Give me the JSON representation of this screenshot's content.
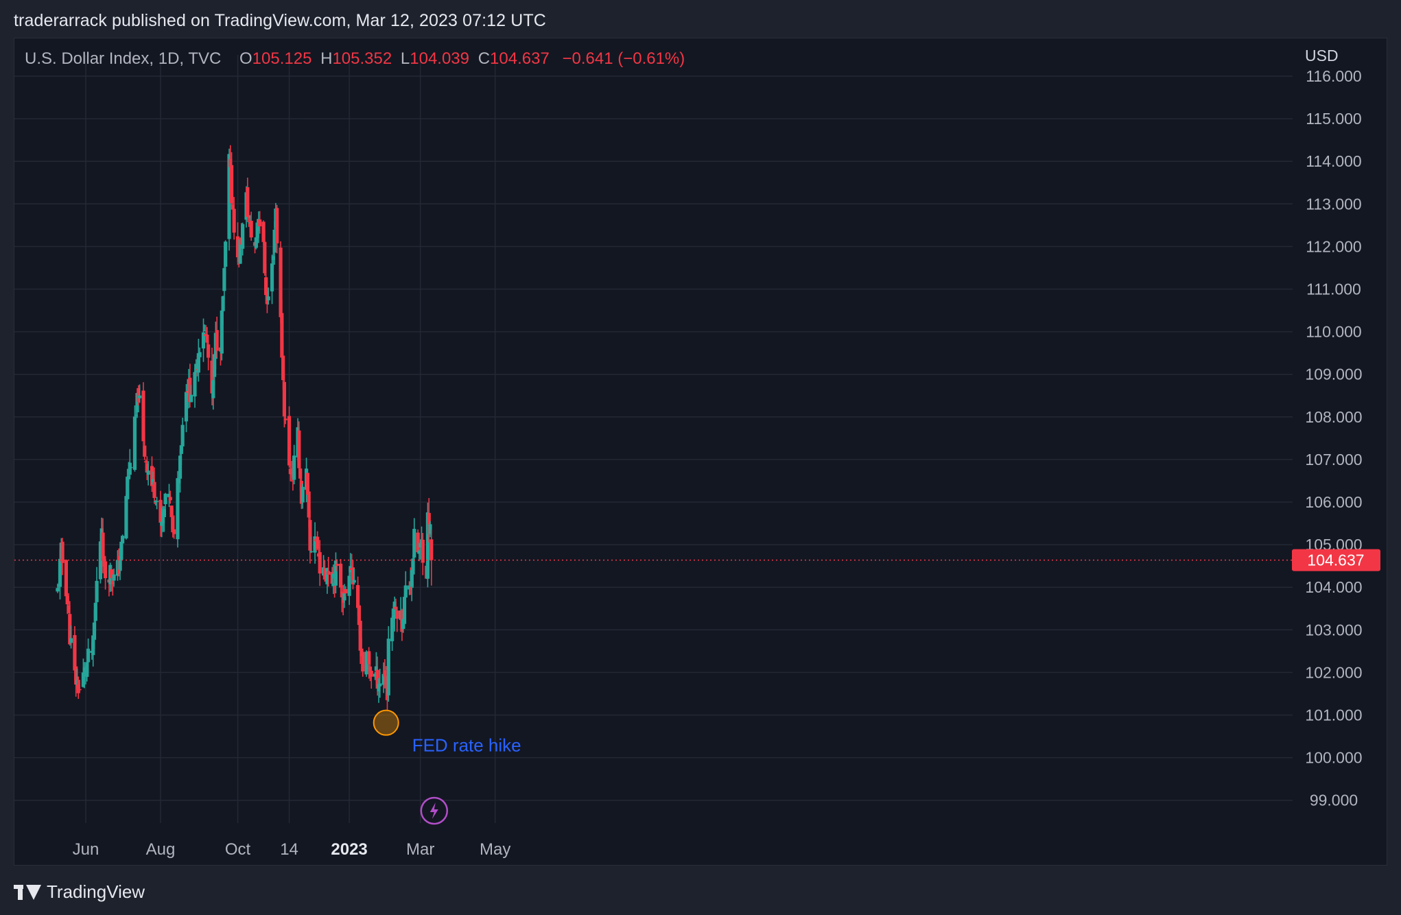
{
  "publisher_line": "traderarrack published on TradingView.com, Mar 12, 2023 07:12 UTC",
  "legend": {
    "symbol": "U.S. Dollar Index, 1D, TVC",
    "open_label": "O",
    "open": "105.125",
    "high_label": "H",
    "high": "105.352",
    "low_label": "L",
    "low": "104.039",
    "close_label": "C",
    "close": "104.637",
    "change": "−0.641 (−0.61%)"
  },
  "currency": "USD",
  "footer": {
    "brand": "TradingView"
  },
  "colors": {
    "up": "#26a69a",
    "down": "#f23645",
    "grid": "#232834",
    "annotation": "#2962ff",
    "circle": "#ff9800",
    "event_icon": "#b24ec9"
  },
  "chart_data": {
    "type": "candlestick",
    "title": "U.S. Dollar Index, 1D, TVC",
    "ylabel": "USD",
    "ylim": [
      98.4,
      116.2
    ],
    "y_ticks": [
      "116.000",
      "115.000",
      "114.000",
      "113.000",
      "112.000",
      "111.000",
      "110.000",
      "109.000",
      "108.000",
      "107.000",
      "106.000",
      "105.000",
      "104.000",
      "103.000",
      "102.000",
      "101.000",
      "100.000",
      "99.000"
    ],
    "x_ticks": [
      {
        "label": "Jun",
        "date": "2022-06-01",
        "bold": false
      },
      {
        "label": "Aug",
        "date": "2022-08-01",
        "bold": false
      },
      {
        "label": "Oct",
        "date": "2022-10-03",
        "bold": false
      },
      {
        "label": "14",
        "date": "2022-11-14",
        "bold": false
      },
      {
        "label": "2023",
        "date": "2023-01-02",
        "bold": true
      },
      {
        "label": "Mar",
        "date": "2023-03-01",
        "bold": false
      },
      {
        "label": "May",
        "date": "2023-05-01",
        "bold": false
      }
    ],
    "last_price": 104.637,
    "last_price_label": "104.637",
    "annotation": {
      "text": "FED rate hike",
      "date": "2023-02-01",
      "price": 100.82
    },
    "event_marker": {
      "date": "2023-03-10",
      "icon": "lightning-icon"
    },
    "series": [
      {
        "date": "2022-05-09",
        "close": 103.9
      },
      {
        "date": "2022-05-12",
        "close": 104.8
      },
      {
        "date": "2022-05-16",
        "close": 104.0
      },
      {
        "date": "2022-05-19",
        "close": 102.9
      },
      {
        "date": "2022-05-23",
        "close": 101.9
      },
      {
        "date": "2022-05-27",
        "close": 101.6
      },
      {
        "date": "2022-05-31",
        "close": 102.0
      },
      {
        "date": "2022-06-03",
        "close": 102.3
      },
      {
        "date": "2022-06-07",
        "close": 102.6
      },
      {
        "date": "2022-06-10",
        "close": 104.1
      },
      {
        "date": "2022-06-14",
        "close": 105.5
      },
      {
        "date": "2022-06-16",
        "close": 104.3
      },
      {
        "date": "2022-06-21",
        "close": 104.4
      },
      {
        "date": "2022-06-24",
        "close": 104.2
      },
      {
        "date": "2022-06-28",
        "close": 104.5
      },
      {
        "date": "2022-07-01",
        "close": 105.1
      },
      {
        "date": "2022-07-05",
        "close": 106.5
      },
      {
        "date": "2022-07-08",
        "close": 107.0
      },
      {
        "date": "2022-07-12",
        "close": 108.0
      },
      {
        "date": "2022-07-14",
        "close": 108.6
      },
      {
        "date": "2022-07-18",
        "close": 107.3
      },
      {
        "date": "2022-07-21",
        "close": 106.9
      },
      {
        "date": "2022-07-25",
        "close": 106.4
      },
      {
        "date": "2022-07-28",
        "close": 106.3
      },
      {
        "date": "2022-08-01",
        "close": 105.3
      },
      {
        "date": "2022-08-04",
        "close": 105.8
      },
      {
        "date": "2022-08-08",
        "close": 106.3
      },
      {
        "date": "2022-08-11",
        "close": 105.1
      },
      {
        "date": "2022-08-15",
        "close": 106.5
      },
      {
        "date": "2022-08-18",
        "close": 107.5
      },
      {
        "date": "2022-08-22",
        "close": 108.8
      },
      {
        "date": "2022-08-25",
        "close": 108.6
      },
      {
        "date": "2022-08-29",
        "close": 108.8
      },
      {
        "date": "2022-09-01",
        "close": 109.6
      },
      {
        "date": "2022-09-05",
        "close": 110.1
      },
      {
        "date": "2022-09-08",
        "close": 109.7
      },
      {
        "date": "2022-09-12",
        "close": 108.3
      },
      {
        "date": "2022-09-15",
        "close": 109.8
      },
      {
        "date": "2022-09-19",
        "close": 109.8
      },
      {
        "date": "2022-09-22",
        "close": 111.3
      },
      {
        "date": "2022-09-26",
        "close": 114.0
      },
      {
        "date": "2022-09-28",
        "close": 113.2
      },
      {
        "date": "2022-10-03",
        "close": 111.6
      },
      {
        "date": "2022-10-06",
        "close": 112.2
      },
      {
        "date": "2022-10-10",
        "close": 113.1
      },
      {
        "date": "2022-10-13",
        "close": 112.4
      },
      {
        "date": "2022-10-17",
        "close": 112.0
      },
      {
        "date": "2022-10-20",
        "close": 112.8
      },
      {
        "date": "2022-10-24",
        "close": 111.9
      },
      {
        "date": "2022-10-27",
        "close": 110.6
      },
      {
        "date": "2022-10-31",
        "close": 111.5
      },
      {
        "date": "2022-11-03",
        "close": 112.9
      },
      {
        "date": "2022-11-07",
        "close": 110.2
      },
      {
        "date": "2022-11-10",
        "close": 108.2
      },
      {
        "date": "2022-11-14",
        "close": 106.8
      },
      {
        "date": "2022-11-17",
        "close": 106.7
      },
      {
        "date": "2022-11-21",
        "close": 107.5
      },
      {
        "date": "2022-11-24",
        "close": 106.1
      },
      {
        "date": "2022-11-28",
        "close": 106.6
      },
      {
        "date": "2022-12-01",
        "close": 104.8
      },
      {
        "date": "2022-12-05",
        "close": 105.3
      },
      {
        "date": "2022-12-08",
        "close": 104.7
      },
      {
        "date": "2022-12-12",
        "close": 104.2
      },
      {
        "date": "2022-12-15",
        "close": 104.5
      },
      {
        "date": "2022-12-19",
        "close": 104.3
      },
      {
        "date": "2022-12-22",
        "close": 104.4
      },
      {
        "date": "2022-12-26",
        "close": 104.1
      },
      {
        "date": "2022-12-29",
        "close": 103.7
      },
      {
        "date": "2023-01-03",
        "close": 104.7
      },
      {
        "date": "2023-01-06",
        "close": 103.9
      },
      {
        "date": "2023-01-10",
        "close": 103.1
      },
      {
        "date": "2023-01-13",
        "close": 102.1
      },
      {
        "date": "2023-01-17",
        "close": 102.3
      },
      {
        "date": "2023-01-20",
        "close": 102.0
      },
      {
        "date": "2023-01-24",
        "close": 101.9
      },
      {
        "date": "2023-01-27",
        "close": 101.8
      },
      {
        "date": "2023-01-31",
        "close": 102.0
      },
      {
        "date": "2023-02-02",
        "close": 101.4
      },
      {
        "date": "2023-02-03",
        "close": 102.9
      },
      {
        "date": "2023-02-07",
        "close": 103.4
      },
      {
        "date": "2023-02-10",
        "close": 103.5
      },
      {
        "date": "2023-02-14",
        "close": 103.2
      },
      {
        "date": "2023-02-17",
        "close": 103.9
      },
      {
        "date": "2023-02-21",
        "close": 104.2
      },
      {
        "date": "2023-02-24",
        "close": 105.1
      },
      {
        "date": "2023-02-28",
        "close": 104.8
      },
      {
        "date": "2023-03-02",
        "close": 105.0
      },
      {
        "date": "2023-03-06",
        "close": 104.4
      },
      {
        "date": "2023-03-07",
        "close": 105.6
      },
      {
        "date": "2023-03-09",
        "close": 105.3
      },
      {
        "date": "2023-03-10",
        "close": 104.637
      }
    ]
  }
}
